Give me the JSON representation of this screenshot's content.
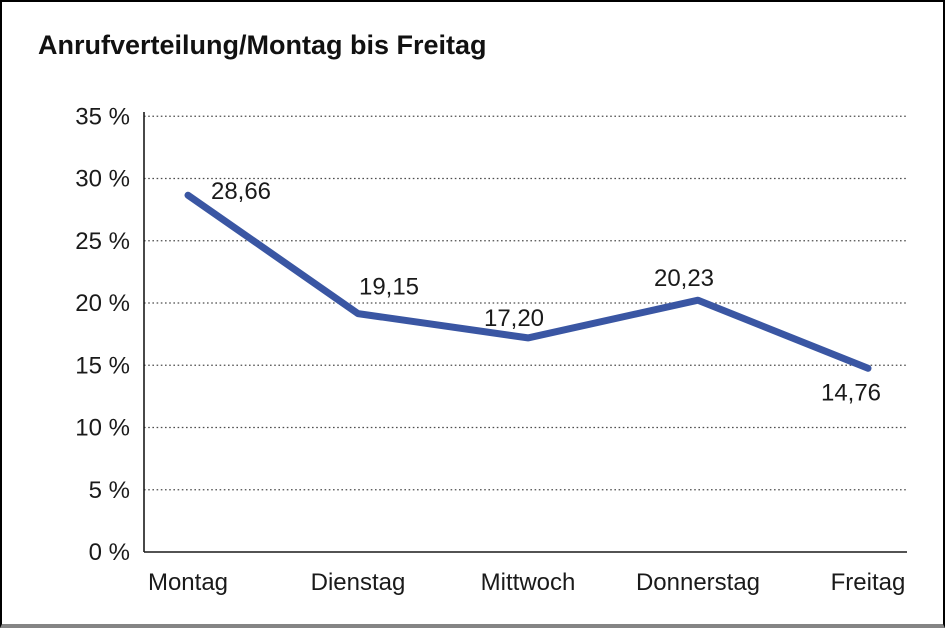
{
  "title": "Anrufverteilung/Montag bis Freitag",
  "chart_data": {
    "type": "line",
    "title": "Anrufverteilung/Montag bis Freitag",
    "categories": [
      "Montag",
      "Dienstag",
      "Mittwoch",
      "Donnerstag",
      "Freitag"
    ],
    "values": [
      28.66,
      19.15,
      17.2,
      20.23,
      14.76
    ],
    "data_labels": [
      "28,66",
      "19,15",
      "17,20",
      "20,23",
      "14,76"
    ],
    "series": [
      {
        "name": "Anrufverteilung",
        "values": [
          28.66,
          19.15,
          17.2,
          20.23,
          14.76
        ]
      }
    ],
    "xlabel": "",
    "ylabel": "",
    "ylim": [
      0,
      35
    ],
    "y_tick_values": [
      35,
      30,
      25,
      20,
      15,
      10,
      5,
      0
    ],
    "y_ticks": [
      "35 %",
      "30 %",
      "25 %",
      "20 %",
      "15 %",
      "10 %",
      "5 %",
      "0 %"
    ],
    "grid": "horizontal-dotted",
    "legend": "none"
  },
  "colors": {
    "line": "#3A56A3",
    "axis": "#1a1a1a",
    "grid": "#4d4d4d",
    "text": "#1a1a1a",
    "background": "#ffffff",
    "frame_border": "#000000",
    "frame_bottom": "#858585"
  }
}
